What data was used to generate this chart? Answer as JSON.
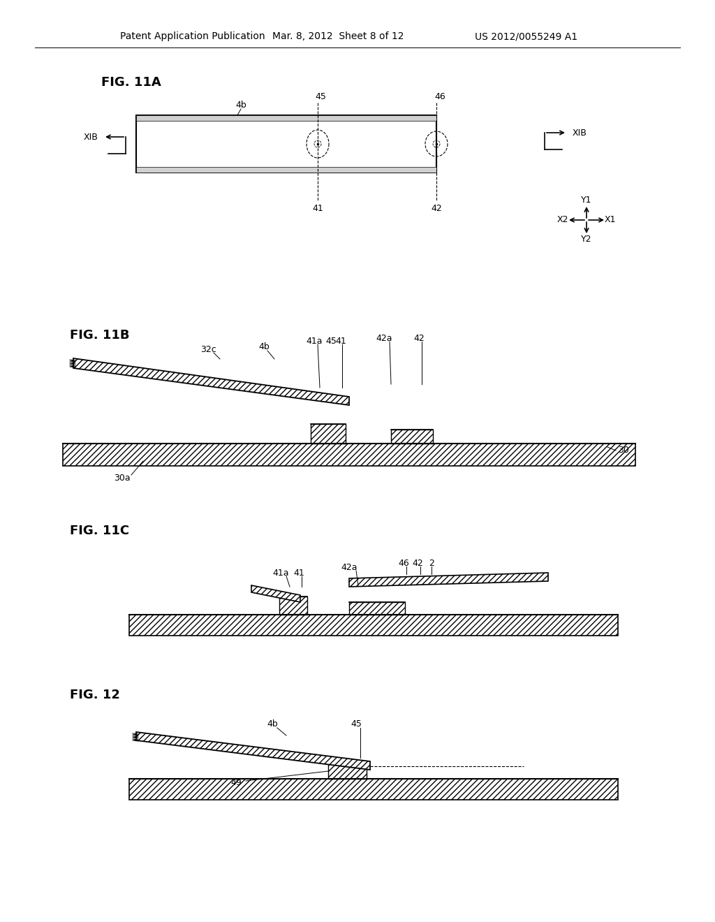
{
  "bg_color": "#ffffff",
  "header_left": "Patent Application Publication",
  "header_mid": "Mar. 8, 2012  Sheet 8 of 12",
  "header_right": "US 2012/0055249 A1"
}
